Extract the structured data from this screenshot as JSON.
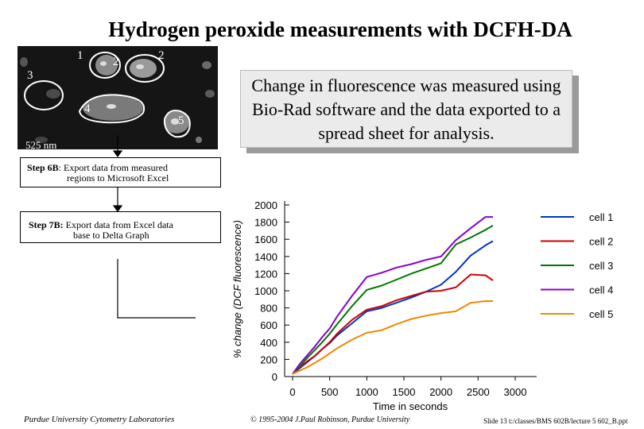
{
  "slide": {
    "title": "Hydrogen peroxide measurements with DCFH-DA",
    "micrograph": {
      "cell_numbers": [
        "1",
        "2",
        "2",
        "3",
        "4",
        "5"
      ],
      "wavelength_label": "525 nm"
    },
    "callout_text": "Change in fluorescence was measured using Bio-Rad software and the data exported to a spread sheet for analysis.",
    "step6": {
      "title": "Step 6B",
      "text_line1": ": Export data from measured",
      "text_line2": "regions to Microsoft Excel"
    },
    "step7": {
      "title": "Step 7B:",
      "text_line1": "Export data from Excel data",
      "text_line2": "base to Delta Graph"
    },
    "footer_left": "Purdue University Cytometry Laboratories",
    "footer_mid": "© 1995-2004 J.Paul Robinson, Purdue University",
    "footer_right": "Slide 13 t:/classes/BMS 602B/lecture 5 602_B.ppt"
  },
  "chart_data": {
    "type": "line",
    "xlabel": "Time in seconds",
    "ylabel": "% change (DCF fluorescence)",
    "xlim": [
      0,
      3000
    ],
    "ylim": [
      0,
      2000
    ],
    "x_ticks": [
      "0",
      "500",
      "1000",
      "1500",
      "2000",
      "2500",
      "3000"
    ],
    "y_ticks": [
      "0",
      "200",
      "400",
      "600",
      "800",
      "1000",
      "1200",
      "1400",
      "1600",
      "1800",
      "2000"
    ],
    "grid": false,
    "legend_position": "right",
    "x": [
      0,
      100,
      200,
      300,
      400,
      500,
      600,
      800,
      1000,
      1200,
      1400,
      1600,
      1800,
      2000,
      2200,
      2400,
      2600,
      2700
    ],
    "series": [
      {
        "name": "cell 1",
        "color": "#0033cc",
        "values": [
          30,
          100,
          170,
          240,
          320,
          390,
          480,
          620,
          760,
          800,
          860,
          920,
          990,
          1070,
          1220,
          1410,
          1530,
          1580
        ]
      },
      {
        "name": "cell 2",
        "color": "#cc0000",
        "values": [
          30,
          110,
          180,
          240,
          320,
          400,
          500,
          660,
          780,
          820,
          890,
          940,
          990,
          1000,
          1040,
          1190,
          1180,
          1120
        ]
      },
      {
        "name": "cell 3",
        "color": "#007700",
        "values": [
          30,
          120,
          220,
          310,
          400,
          500,
          610,
          820,
          1010,
          1060,
          1130,
          1200,
          1260,
          1320,
          1540,
          1620,
          1710,
          1760
        ]
      },
      {
        "name": "cell 4",
        "color": "#8800cc",
        "values": [
          30,
          150,
          250,
          350,
          460,
          560,
          700,
          940,
          1160,
          1210,
          1270,
          1310,
          1360,
          1400,
          1590,
          1730,
          1860,
          1860
        ]
      },
      {
        "name": "cell 5",
        "color": "#ee8800",
        "values": [
          30,
          70,
          110,
          160,
          210,
          270,
          330,
          430,
          510,
          540,
          610,
          670,
          710,
          740,
          760,
          860,
          880,
          880
        ]
      }
    ]
  }
}
